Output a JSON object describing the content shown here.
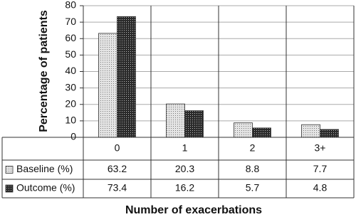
{
  "chart_data": {
    "type": "bar",
    "y_label": "Percentage of patients",
    "x_label": "Number of exacerbations",
    "categories": [
      "0",
      "1",
      "2",
      "3+"
    ],
    "series": [
      {
        "name": "Baseline (%)",
        "color": "#e4e4e4",
        "values": [
          63.2,
          20.3,
          8.8,
          7.7
        ]
      },
      {
        "name": "Outcome (%)",
        "color": "#2a2a2a",
        "values": [
          73.4,
          16.2,
          5.7,
          4.8
        ]
      }
    ],
    "ylim": [
      0,
      80
    ],
    "yticks": [
      0,
      10,
      20,
      30,
      40,
      50,
      60,
      70,
      80
    ],
    "grid": true
  }
}
